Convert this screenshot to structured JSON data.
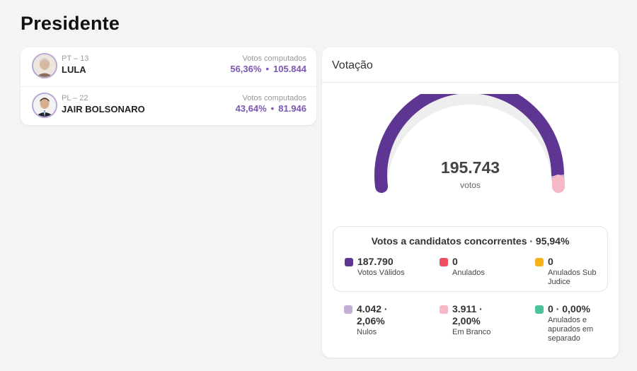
{
  "page": {
    "title": "Presidente"
  },
  "candidates": [
    {
      "party": "PT – 13",
      "name": "LULA",
      "votes_label": "Votos computados",
      "percent": "56,36%",
      "sep": "•",
      "votes": "105.844"
    },
    {
      "party": "PL – 22",
      "name": "JAIR BOLSONARO",
      "votes_label": "Votos computados",
      "percent": "43,64%",
      "sep": "•",
      "votes": "81.946"
    }
  ],
  "votacao": {
    "title": "Votação",
    "total": "195.743",
    "total_label": "votos",
    "gauge_fractions": {
      "validos": 0.9594,
      "nulos": 0.0206,
      "brancos": 0.02
    },
    "concorrentes_title": "Votos a candidatos concorrentes · 95,94%",
    "inner_stats": [
      {
        "value": "187.790",
        "label": "Votos Válidos",
        "color": "#5e3593"
      },
      {
        "value": "0",
        "label": "Anulados",
        "color": "#ee4d5f"
      },
      {
        "value": "0",
        "label": "Anulados Sub Judice",
        "color": "#f7b217"
      }
    ],
    "outer_stats": [
      {
        "value": "4.042 · 2,06%",
        "label": "Nulos",
        "color": "#c3aed8"
      },
      {
        "value": "3.911 · 2,00%",
        "label": "Em Branco",
        "color": "#f7b8c6"
      },
      {
        "value": "0 · 0,00%",
        "label": "Anulados e apurados em separado",
        "color": "#4cc19b"
      }
    ]
  }
}
